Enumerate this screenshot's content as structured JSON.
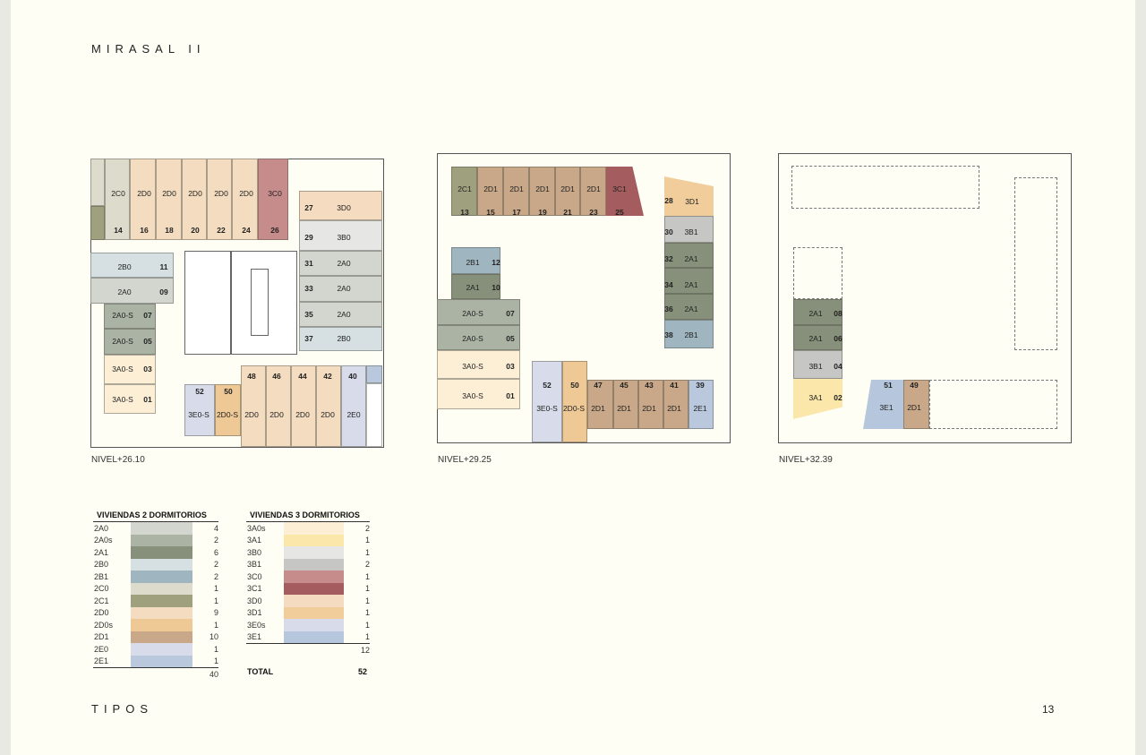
{
  "header": {
    "title": "MIRASAL II"
  },
  "footer": {
    "section": "TIPOS",
    "page_number": "13"
  },
  "plans": [
    {
      "level": "NIVEL+26.10",
      "units": [
        {
          "type": "2C0",
          "num": "14"
        },
        {
          "type": "2D0",
          "num": "16"
        },
        {
          "type": "2D0",
          "num": "18"
        },
        {
          "type": "2D0",
          "num": "20"
        },
        {
          "type": "2D0",
          "num": "22"
        },
        {
          "type": "2D0",
          "num": "24"
        },
        {
          "type": "3C0",
          "num": "26"
        },
        {
          "type": "3D0",
          "num": "27"
        },
        {
          "type": "3B0",
          "num": "29"
        },
        {
          "type": "2A0",
          "num": "31"
        },
        {
          "type": "2A0",
          "num": "33"
        },
        {
          "type": "2A0",
          "num": "35"
        },
        {
          "type": "2B0",
          "num": "37"
        },
        {
          "type": "2B0",
          "num": "11"
        },
        {
          "type": "2A0",
          "num": "09"
        },
        {
          "type": "2A0-S",
          "num": "07"
        },
        {
          "type": "2A0-S",
          "num": "05"
        },
        {
          "type": "3A0-S",
          "num": "03"
        },
        {
          "type": "3A0-S",
          "num": "01"
        },
        {
          "type": "3E0-S",
          "num": "52"
        },
        {
          "type": "2D0-S",
          "num": "50"
        },
        {
          "type": "2D0",
          "num": "48"
        },
        {
          "type": "2D0",
          "num": "46"
        },
        {
          "type": "2D0",
          "num": "44"
        },
        {
          "type": "2D0",
          "num": "42"
        },
        {
          "type": "2E0",
          "num": "40"
        }
      ]
    },
    {
      "level": "NIVEL+29.25",
      "units": [
        {
          "type": "2C1",
          "num": "13"
        },
        {
          "type": "2D1",
          "num": "15"
        },
        {
          "type": "2D1",
          "num": "17"
        },
        {
          "type": "2D1",
          "num": "19"
        },
        {
          "type": "2D1",
          "num": "21"
        },
        {
          "type": "2D1",
          "num": "23"
        },
        {
          "type": "3C1",
          "num": "25"
        },
        {
          "type": "3D1",
          "num": "28"
        },
        {
          "type": "3B1",
          "num": "30"
        },
        {
          "type": "2A1",
          "num": "32"
        },
        {
          "type": "2A1",
          "num": "34"
        },
        {
          "type": "2A1",
          "num": "36"
        },
        {
          "type": "2B1",
          "num": "38"
        },
        {
          "type": "2B1",
          "num": "12"
        },
        {
          "type": "2A1",
          "num": "10"
        },
        {
          "type": "2A0-S",
          "num": "07"
        },
        {
          "type": "2A0-S",
          "num": "05"
        },
        {
          "type": "3A0-S",
          "num": "03"
        },
        {
          "type": "3A0-S",
          "num": "01"
        },
        {
          "type": "3E0-S",
          "num": "52"
        },
        {
          "type": "2D0-S",
          "num": "50"
        },
        {
          "type": "2D1",
          "num": "47"
        },
        {
          "type": "2D1",
          "num": "45"
        },
        {
          "type": "2D1",
          "num": "43"
        },
        {
          "type": "2D1",
          "num": "41"
        },
        {
          "type": "2E1",
          "num": "39"
        }
      ]
    },
    {
      "level": "NIVEL+32.39",
      "units": [
        {
          "type": "2A1",
          "num": "08"
        },
        {
          "type": "2A1",
          "num": "06"
        },
        {
          "type": "3B1",
          "num": "04"
        },
        {
          "type": "3A1",
          "num": "02"
        },
        {
          "type": "3E1",
          "num": "51"
        },
        {
          "type": "2D1",
          "num": "49"
        }
      ]
    }
  ],
  "legend": {
    "two_bed": {
      "title": "VIVIENDAS 2 DORMITORIOS",
      "total": "40",
      "rows": [
        {
          "code": "2A0",
          "count": "4",
          "color": "#d3d6cf"
        },
        {
          "code": "2A0s",
          "count": "2",
          "color": "#abb3a5"
        },
        {
          "code": "2A1",
          "count": "6",
          "color": "#87907a"
        },
        {
          "code": "2B0",
          "count": "2",
          "color": "#d6e0e3"
        },
        {
          "code": "2B1",
          "count": "2",
          "color": "#9fb5bf"
        },
        {
          "code": "2C0",
          "count": "1",
          "color": "#dcdbcc"
        },
        {
          "code": "2C1",
          "count": "1",
          "color": "#9fa07e"
        },
        {
          "code": "2D0",
          "count": "9",
          "color": "#f3dcbf"
        },
        {
          "code": "2D0s",
          "count": "1",
          "color": "#eec996"
        },
        {
          "code": "2D1",
          "count": "10",
          "color": "#c8a888"
        },
        {
          "code": "2E0",
          "count": "1",
          "color": "#d8dbea"
        },
        {
          "code": "2E1",
          "count": "1",
          "color": "#b9c8dc"
        }
      ]
    },
    "three_bed": {
      "title": "VIVIENDAS 3 DORMITORIOS",
      "total": "12",
      "rows": [
        {
          "code": "3A0s",
          "count": "2",
          "color": "#fcefd6"
        },
        {
          "code": "3A1",
          "count": "1",
          "color": "#fbe7aa"
        },
        {
          "code": "3B0",
          "count": "1",
          "color": "#e6e6e4"
        },
        {
          "code": "3B1",
          "count": "2",
          "color": "#c6c6c4"
        },
        {
          "code": "3C0",
          "count": "1",
          "color": "#c68b8b"
        },
        {
          "code": "3C1",
          "count": "1",
          "color": "#a45c5e"
        },
        {
          "code": "3D0",
          "count": "1",
          "color": "#f5dcc0"
        },
        {
          "code": "3D1",
          "count": "1",
          "color": "#f0cd9b"
        },
        {
          "code": "3E0s",
          "count": "1",
          "color": "#d8dcea"
        },
        {
          "code": "3E1",
          "count": "1",
          "color": "#b6c6dc"
        }
      ]
    },
    "grand_total_label": "TOTAL",
    "grand_total": "52"
  }
}
